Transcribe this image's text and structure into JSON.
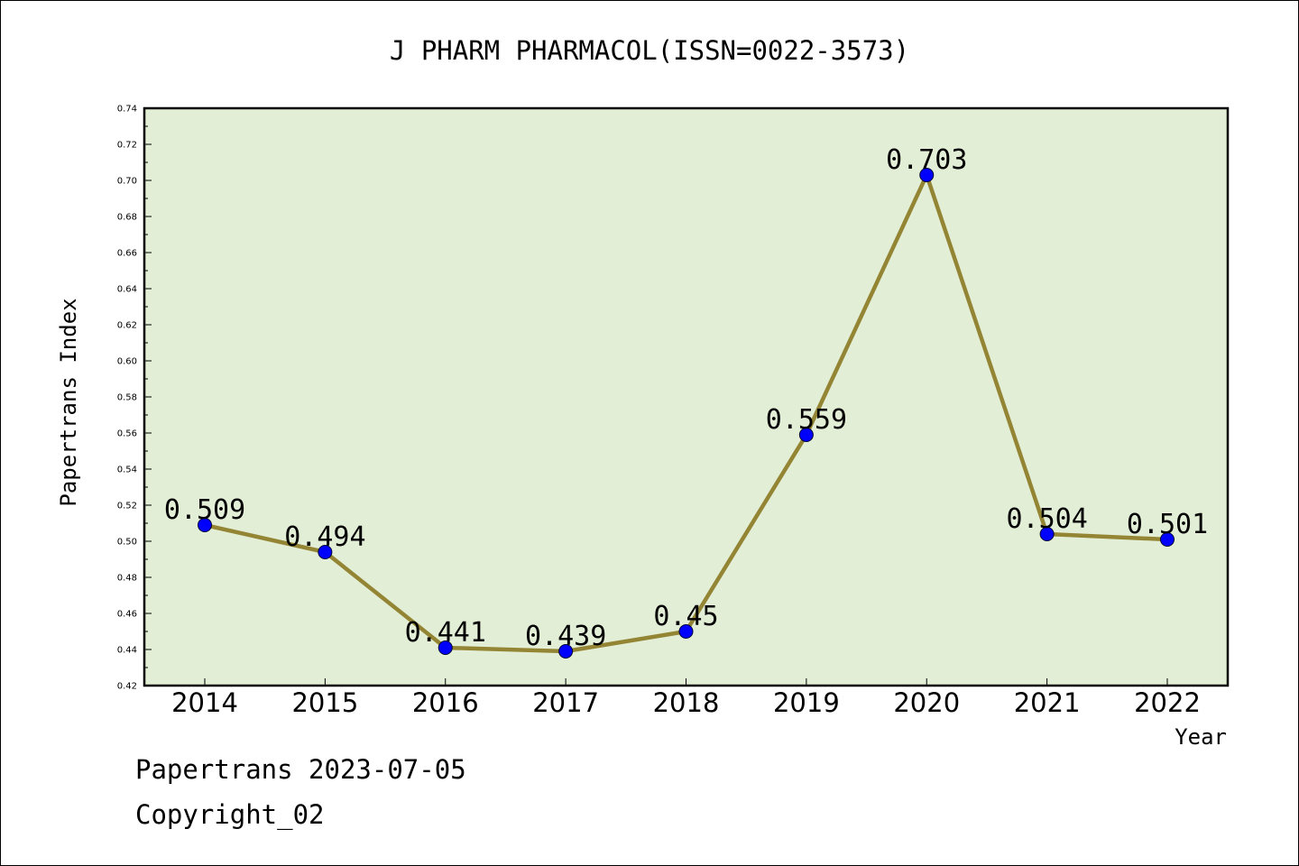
{
  "chart_data": {
    "type": "line",
    "title": "J PHARM PHARMACOL(ISSN=0022-3573)",
    "xlabel": "Year",
    "ylabel": "Papertrans Index",
    "categories": [
      "2014",
      "2015",
      "2016",
      "2017",
      "2018",
      "2019",
      "2020",
      "2021",
      "2022"
    ],
    "values": [
      0.509,
      0.494,
      0.441,
      0.439,
      0.45,
      0.559,
      0.703,
      0.504,
      0.501
    ],
    "data_labels": [
      "0.509",
      "0.494",
      "0.441",
      "0.439",
      "0.45",
      "0.559",
      "0.703",
      "0.504",
      "0.501"
    ],
    "ylim": [
      0.42,
      0.74
    ],
    "yticks": [
      "0.42",
      "0.44",
      "0.46",
      "0.48",
      "0.50",
      "0.52",
      "0.54",
      "0.56",
      "0.58",
      "0.60",
      "0.62",
      "0.64",
      "0.66",
      "0.68",
      "0.70",
      "0.72",
      "0.74"
    ],
    "grid": false,
    "colors": {
      "plot_background": "#e2efd6",
      "line": "#948535",
      "marker": "#0000ff"
    }
  },
  "footer": {
    "line1": "Papertrans 2023-07-05",
    "line2": "Copyright_02"
  }
}
